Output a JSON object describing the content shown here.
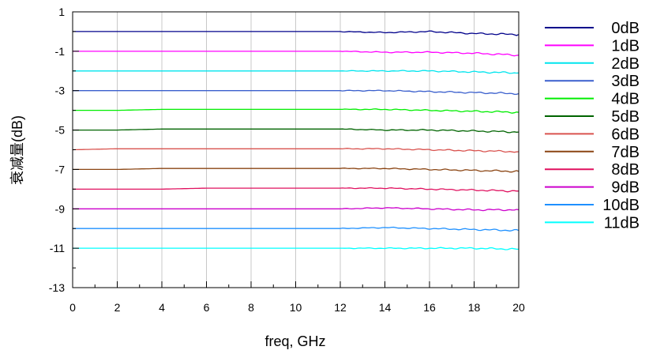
{
  "chart_data": {
    "type": "line",
    "title": "",
    "xlabel": "freq, GHz",
    "ylabel": "衰减量(dB)",
    "xlim": [
      0,
      20
    ],
    "ylim": [
      -13,
      1
    ],
    "xticks": [
      0,
      2,
      4,
      6,
      8,
      10,
      12,
      14,
      16,
      18,
      20
    ],
    "yticks": [
      1,
      -1,
      -3,
      -5,
      -7,
      -9,
      -11,
      -13
    ],
    "grid": true,
    "legend_position": "right",
    "x": [
      0,
      2,
      4,
      6,
      8,
      10,
      12,
      14,
      16,
      18,
      20
    ],
    "series": [
      {
        "name": "0dB",
        "color": "#00008B",
        "values": [
          0.0,
          0.0,
          0.0,
          0.0,
          0.0,
          0.0,
          0.0,
          -0.05,
          0.0,
          -0.1,
          -0.15
        ]
      },
      {
        "name": "1dB",
        "color": "#FF00FF",
        "values": [
          -1.0,
          -1.0,
          -1.0,
          -1.0,
          -1.0,
          -1.0,
          -1.0,
          -1.05,
          -1.05,
          -1.1,
          -1.2
        ]
      },
      {
        "name": "2dB",
        "color": "#00E5EE",
        "values": [
          -2.0,
          -2.0,
          -2.0,
          -2.0,
          -2.0,
          -2.0,
          -2.0,
          -2.0,
          -2.0,
          -2.05,
          -2.1
        ]
      },
      {
        "name": "3dB",
        "color": "#3A5FCD",
        "values": [
          -3.0,
          -3.0,
          -3.0,
          -3.0,
          -3.0,
          -3.0,
          -3.0,
          -3.0,
          -3.05,
          -3.1,
          -3.15
        ]
      },
      {
        "name": "4dB",
        "color": "#00EE00",
        "values": [
          -4.0,
          -4.0,
          -3.95,
          -3.95,
          -3.95,
          -3.95,
          -3.95,
          -3.95,
          -4.0,
          -4.05,
          -4.1
        ]
      },
      {
        "name": "5dB",
        "color": "#006400",
        "values": [
          -5.0,
          -5.0,
          -4.95,
          -4.95,
          -4.95,
          -4.95,
          -4.95,
          -5.0,
          -5.0,
          -5.05,
          -5.1
        ]
      },
      {
        "name": "6dB",
        "color": "#D9534F",
        "values": [
          -6.0,
          -5.95,
          -5.95,
          -5.95,
          -5.95,
          -5.95,
          -5.95,
          -5.95,
          -6.0,
          -6.05,
          -6.1
        ]
      },
      {
        "name": "7dB",
        "color": "#8B4513",
        "values": [
          -7.0,
          -7.0,
          -6.95,
          -6.95,
          -6.95,
          -6.95,
          -6.95,
          -6.95,
          -7.0,
          -7.05,
          -7.1
        ]
      },
      {
        "name": "8dB",
        "color": "#E0115F",
        "values": [
          -8.0,
          -8.0,
          -8.0,
          -7.95,
          -7.95,
          -7.95,
          -7.95,
          -7.95,
          -8.0,
          -8.05,
          -8.1
        ]
      },
      {
        "name": "9dB",
        "color": "#CC00CC",
        "values": [
          -9.0,
          -9.0,
          -9.0,
          -9.0,
          -9.0,
          -9.0,
          -9.0,
          -8.95,
          -9.0,
          -9.05,
          -9.05
        ]
      },
      {
        "name": "10dB",
        "color": "#1E90FF",
        "values": [
          -10.0,
          -10.0,
          -10.0,
          -10.0,
          -10.0,
          -10.0,
          -10.0,
          -9.95,
          -10.0,
          -10.05,
          -10.1
        ]
      },
      {
        "name": "11dB",
        "color": "#00FFFF",
        "values": [
          -11.0,
          -11.0,
          -11.0,
          -11.0,
          -11.0,
          -11.0,
          -11.0,
          -11.0,
          -11.0,
          -11.0,
          -11.05
        ]
      }
    ]
  }
}
